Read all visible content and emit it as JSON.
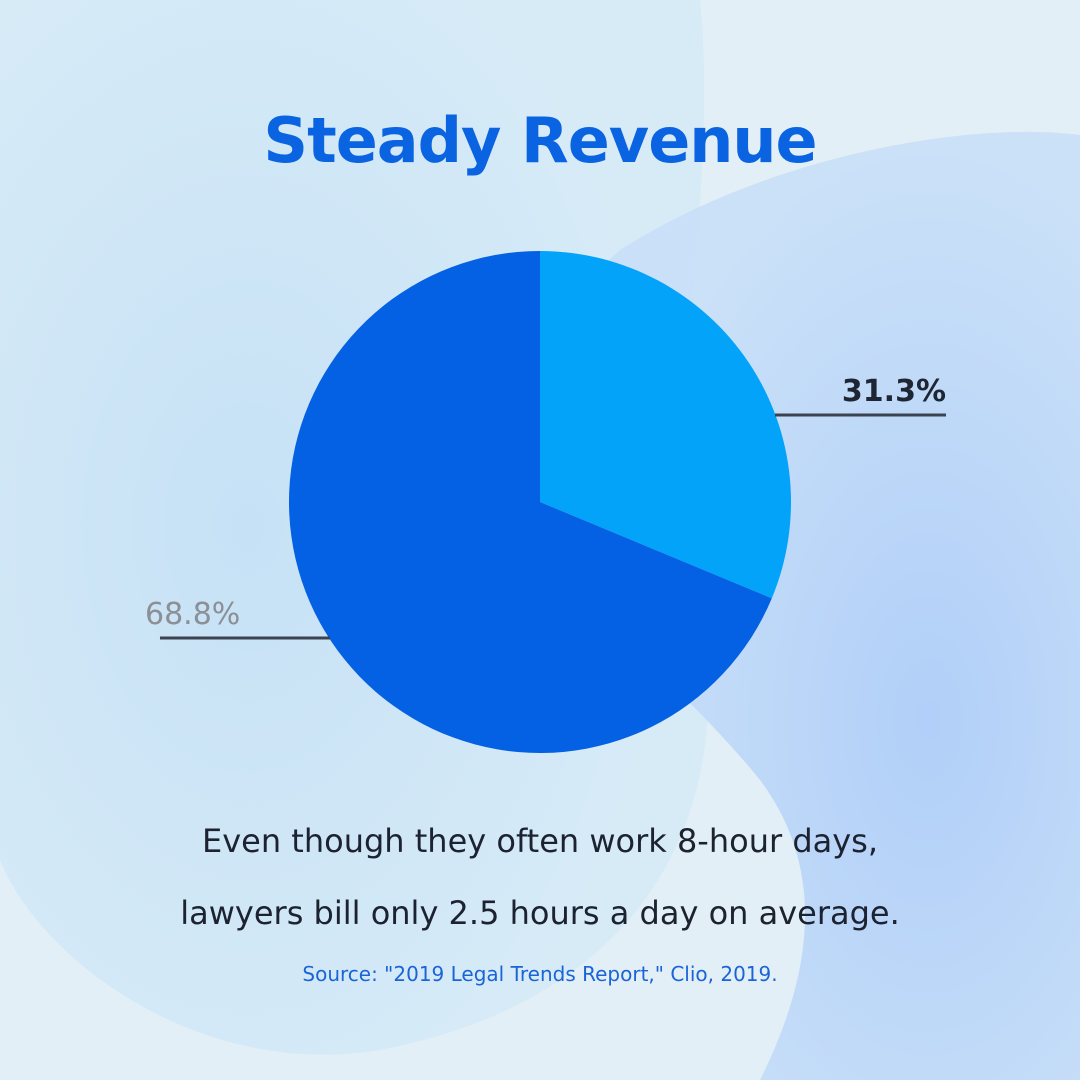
{
  "chart_data": {
    "type": "pie",
    "title": "Steady Revenue",
    "slices": [
      {
        "label": "31.3%",
        "value": 31.3,
        "color": "#03a3f9"
      },
      {
        "label": "68.8%",
        "value": 68.8,
        "color": "#0461e3"
      }
    ]
  },
  "caption": {
    "line1": "Even though they often work 8-hour days,",
    "line2": "lawyers bill only 2.5 hours a day on average."
  },
  "source": "Source: \"2019 Legal Trends Report,\" Clio, 2019.",
  "colors": {
    "background": "#e3eff6",
    "title": "#0a63e0",
    "accent_light": "#03a3f9",
    "accent_dark": "#0461e3",
    "leader_line": "#3b4250"
  }
}
